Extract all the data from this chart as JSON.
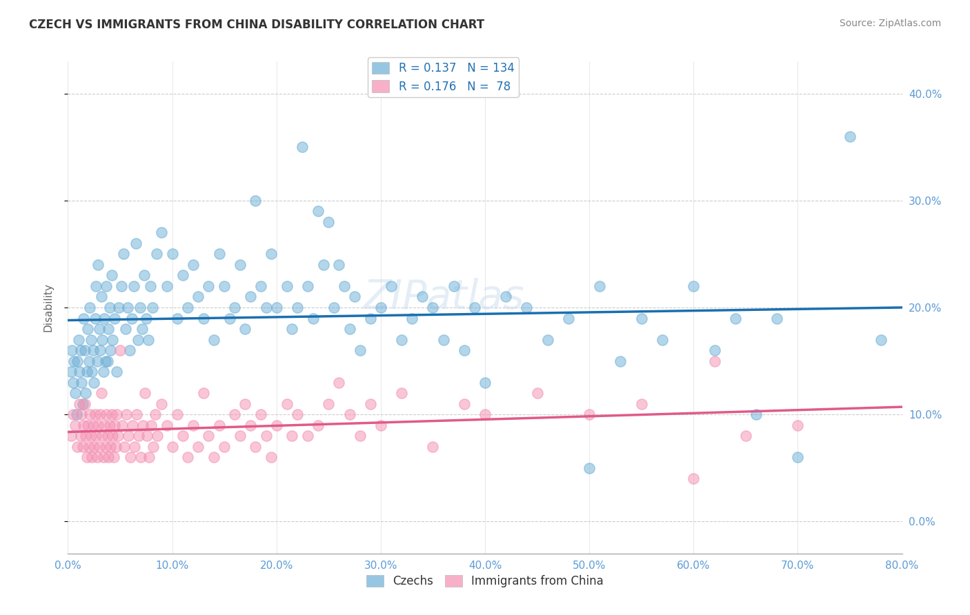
{
  "title": "CZECH VS IMMIGRANTS FROM CHINA DISABILITY CORRELATION CHART",
  "source": "Source: ZipAtlas.com",
  "ylabel": "Disability",
  "legend_labels": [
    "Czechs",
    "Immigrants from China"
  ],
  "czech_color": "#6baed6",
  "china_color": "#f48fb1",
  "czech_line_color": "#1a6faf",
  "china_line_color": "#e05a8a",
  "xlim": [
    0.0,
    0.8
  ],
  "ylim": [
    -0.03,
    0.43
  ],
  "yticks": [
    0.0,
    0.1,
    0.2,
    0.3,
    0.4
  ],
  "xticks": [
    0.0,
    0.1,
    0.2,
    0.3,
    0.4,
    0.5,
    0.6,
    0.7,
    0.8
  ],
  "czech_scatter": [
    [
      0.003,
      0.14
    ],
    [
      0.004,
      0.16
    ],
    [
      0.005,
      0.13
    ],
    [
      0.006,
      0.15
    ],
    [
      0.007,
      0.12
    ],
    [
      0.008,
      0.1
    ],
    [
      0.009,
      0.15
    ],
    [
      0.01,
      0.17
    ],
    [
      0.011,
      0.14
    ],
    [
      0.012,
      0.16
    ],
    [
      0.013,
      0.13
    ],
    [
      0.014,
      0.11
    ],
    [
      0.015,
      0.19
    ],
    [
      0.016,
      0.16
    ],
    [
      0.017,
      0.12
    ],
    [
      0.018,
      0.14
    ],
    [
      0.019,
      0.18
    ],
    [
      0.02,
      0.15
    ],
    [
      0.021,
      0.2
    ],
    [
      0.022,
      0.17
    ],
    [
      0.023,
      0.14
    ],
    [
      0.024,
      0.16
    ],
    [
      0.025,
      0.13
    ],
    [
      0.026,
      0.19
    ],
    [
      0.027,
      0.22
    ],
    [
      0.028,
      0.15
    ],
    [
      0.029,
      0.24
    ],
    [
      0.03,
      0.18
    ],
    [
      0.031,
      0.16
    ],
    [
      0.032,
      0.21
    ],
    [
      0.033,
      0.17
    ],
    [
      0.034,
      0.14
    ],
    [
      0.035,
      0.19
    ],
    [
      0.036,
      0.15
    ],
    [
      0.037,
      0.22
    ],
    [
      0.038,
      0.15
    ],
    [
      0.039,
      0.18
    ],
    [
      0.04,
      0.2
    ],
    [
      0.041,
      0.16
    ],
    [
      0.042,
      0.23
    ],
    [
      0.043,
      0.17
    ],
    [
      0.045,
      0.19
    ],
    [
      0.047,
      0.14
    ],
    [
      0.049,
      0.2
    ],
    [
      0.051,
      0.22
    ],
    [
      0.053,
      0.25
    ],
    [
      0.055,
      0.18
    ],
    [
      0.057,
      0.2
    ],
    [
      0.059,
      0.16
    ],
    [
      0.061,
      0.19
    ],
    [
      0.063,
      0.22
    ],
    [
      0.065,
      0.26
    ],
    [
      0.067,
      0.17
    ],
    [
      0.069,
      0.2
    ],
    [
      0.071,
      0.18
    ],
    [
      0.073,
      0.23
    ],
    [
      0.075,
      0.19
    ],
    [
      0.077,
      0.17
    ],
    [
      0.079,
      0.22
    ],
    [
      0.081,
      0.2
    ],
    [
      0.085,
      0.25
    ],
    [
      0.09,
      0.27
    ],
    [
      0.095,
      0.22
    ],
    [
      0.1,
      0.25
    ],
    [
      0.105,
      0.19
    ],
    [
      0.11,
      0.23
    ],
    [
      0.115,
      0.2
    ],
    [
      0.12,
      0.24
    ],
    [
      0.125,
      0.21
    ],
    [
      0.13,
      0.19
    ],
    [
      0.135,
      0.22
    ],
    [
      0.14,
      0.17
    ],
    [
      0.145,
      0.25
    ],
    [
      0.15,
      0.22
    ],
    [
      0.155,
      0.19
    ],
    [
      0.16,
      0.2
    ],
    [
      0.165,
      0.24
    ],
    [
      0.17,
      0.18
    ],
    [
      0.175,
      0.21
    ],
    [
      0.18,
      0.3
    ],
    [
      0.185,
      0.22
    ],
    [
      0.19,
      0.2
    ],
    [
      0.195,
      0.25
    ],
    [
      0.2,
      0.2
    ],
    [
      0.21,
      0.22
    ],
    [
      0.215,
      0.18
    ],
    [
      0.22,
      0.2
    ],
    [
      0.225,
      0.35
    ],
    [
      0.23,
      0.22
    ],
    [
      0.235,
      0.19
    ],
    [
      0.24,
      0.29
    ],
    [
      0.245,
      0.24
    ],
    [
      0.25,
      0.28
    ],
    [
      0.255,
      0.2
    ],
    [
      0.26,
      0.24
    ],
    [
      0.265,
      0.22
    ],
    [
      0.27,
      0.18
    ],
    [
      0.275,
      0.21
    ],
    [
      0.28,
      0.16
    ],
    [
      0.29,
      0.19
    ],
    [
      0.3,
      0.2
    ],
    [
      0.31,
      0.22
    ],
    [
      0.32,
      0.17
    ],
    [
      0.33,
      0.19
    ],
    [
      0.34,
      0.21
    ],
    [
      0.35,
      0.2
    ],
    [
      0.36,
      0.17
    ],
    [
      0.37,
      0.22
    ],
    [
      0.38,
      0.16
    ],
    [
      0.39,
      0.2
    ],
    [
      0.4,
      0.13
    ],
    [
      0.42,
      0.21
    ],
    [
      0.44,
      0.2
    ],
    [
      0.46,
      0.17
    ],
    [
      0.48,
      0.19
    ],
    [
      0.5,
      0.05
    ],
    [
      0.51,
      0.22
    ],
    [
      0.53,
      0.15
    ],
    [
      0.55,
      0.19
    ],
    [
      0.57,
      0.17
    ],
    [
      0.6,
      0.22
    ],
    [
      0.62,
      0.16
    ],
    [
      0.64,
      0.19
    ],
    [
      0.66,
      0.1
    ],
    [
      0.68,
      0.19
    ],
    [
      0.7,
      0.06
    ],
    [
      0.75,
      0.36
    ],
    [
      0.78,
      0.17
    ]
  ],
  "china_scatter": [
    [
      0.003,
      0.08
    ],
    [
      0.005,
      0.1
    ],
    [
      0.007,
      0.09
    ],
    [
      0.009,
      0.07
    ],
    [
      0.011,
      0.11
    ],
    [
      0.012,
      0.08
    ],
    [
      0.013,
      0.1
    ],
    [
      0.014,
      0.07
    ],
    [
      0.015,
      0.09
    ],
    [
      0.016,
      0.11
    ],
    [
      0.017,
      0.08
    ],
    [
      0.018,
      0.06
    ],
    [
      0.019,
      0.09
    ],
    [
      0.02,
      0.07
    ],
    [
      0.021,
      0.1
    ],
    [
      0.022,
      0.08
    ],
    [
      0.023,
      0.06
    ],
    [
      0.024,
      0.09
    ],
    [
      0.025,
      0.07
    ],
    [
      0.026,
      0.1
    ],
    [
      0.027,
      0.08
    ],
    [
      0.028,
      0.06
    ],
    [
      0.029,
      0.09
    ],
    [
      0.03,
      0.07
    ],
    [
      0.031,
      0.1
    ],
    [
      0.032,
      0.12
    ],
    [
      0.033,
      0.08
    ],
    [
      0.034,
      0.06
    ],
    [
      0.035,
      0.09
    ],
    [
      0.036,
      0.07
    ],
    [
      0.037,
      0.1
    ],
    [
      0.038,
      0.08
    ],
    [
      0.039,
      0.06
    ],
    [
      0.04,
      0.09
    ],
    [
      0.041,
      0.07
    ],
    [
      0.042,
      0.1
    ],
    [
      0.043,
      0.08
    ],
    [
      0.044,
      0.06
    ],
    [
      0.045,
      0.09
    ],
    [
      0.046,
      0.07
    ],
    [
      0.047,
      0.1
    ],
    [
      0.048,
      0.08
    ],
    [
      0.05,
      0.16
    ],
    [
      0.052,
      0.09
    ],
    [
      0.054,
      0.07
    ],
    [
      0.056,
      0.1
    ],
    [
      0.058,
      0.08
    ],
    [
      0.06,
      0.06
    ],
    [
      0.062,
      0.09
    ],
    [
      0.064,
      0.07
    ],
    [
      0.066,
      0.1
    ],
    [
      0.068,
      0.08
    ],
    [
      0.07,
      0.06
    ],
    [
      0.072,
      0.09
    ],
    [
      0.074,
      0.12
    ],
    [
      0.076,
      0.08
    ],
    [
      0.078,
      0.06
    ],
    [
      0.08,
      0.09
    ],
    [
      0.082,
      0.07
    ],
    [
      0.084,
      0.1
    ],
    [
      0.086,
      0.08
    ],
    [
      0.09,
      0.11
    ],
    [
      0.095,
      0.09
    ],
    [
      0.1,
      0.07
    ],
    [
      0.105,
      0.1
    ],
    [
      0.11,
      0.08
    ],
    [
      0.115,
      0.06
    ],
    [
      0.12,
      0.09
    ],
    [
      0.125,
      0.07
    ],
    [
      0.13,
      0.12
    ],
    [
      0.135,
      0.08
    ],
    [
      0.14,
      0.06
    ],
    [
      0.145,
      0.09
    ],
    [
      0.15,
      0.07
    ],
    [
      0.16,
      0.1
    ],
    [
      0.165,
      0.08
    ],
    [
      0.17,
      0.11
    ],
    [
      0.175,
      0.09
    ],
    [
      0.18,
      0.07
    ],
    [
      0.185,
      0.1
    ],
    [
      0.19,
      0.08
    ],
    [
      0.195,
      0.06
    ],
    [
      0.2,
      0.09
    ],
    [
      0.21,
      0.11
    ],
    [
      0.215,
      0.08
    ],
    [
      0.22,
      0.1
    ],
    [
      0.23,
      0.08
    ],
    [
      0.24,
      0.09
    ],
    [
      0.25,
      0.11
    ],
    [
      0.26,
      0.13
    ],
    [
      0.27,
      0.1
    ],
    [
      0.28,
      0.08
    ],
    [
      0.29,
      0.11
    ],
    [
      0.3,
      0.09
    ],
    [
      0.32,
      0.12
    ],
    [
      0.35,
      0.07
    ],
    [
      0.38,
      0.11
    ],
    [
      0.4,
      0.1
    ],
    [
      0.45,
      0.12
    ],
    [
      0.5,
      0.1
    ],
    [
      0.55,
      0.11
    ],
    [
      0.6,
      0.04
    ],
    [
      0.62,
      0.15
    ],
    [
      0.65,
      0.08
    ],
    [
      0.7,
      0.09
    ]
  ]
}
